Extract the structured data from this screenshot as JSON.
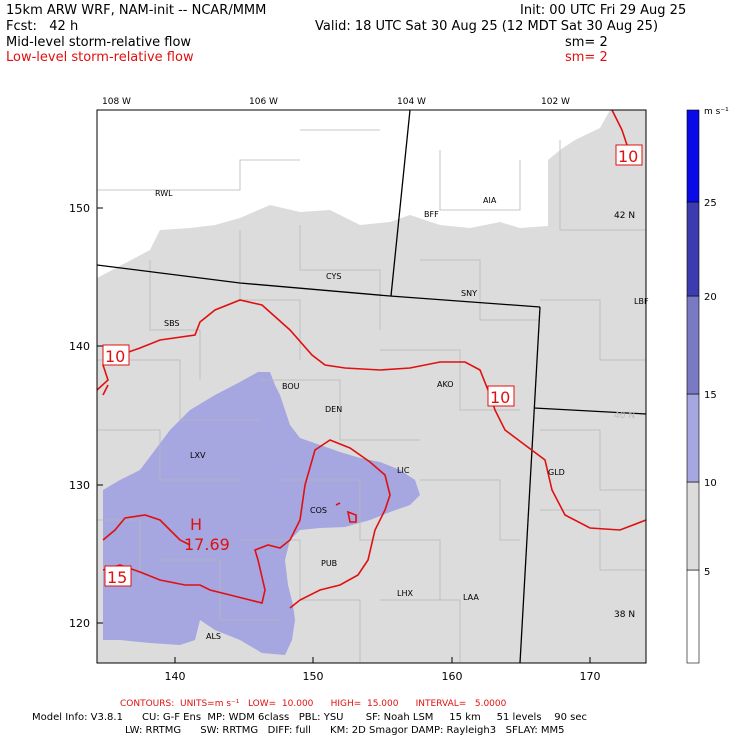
{
  "header": {
    "model_line": "15km ARW WRF, NAM-init -- NCAR/MMM",
    "init": "Init: 00 UTC Fri 29 Aug 25",
    "fcst": "Fcst:   42 h",
    "valid": "Valid: 18 UTC Sat 30 Aug 25 (12 MDT Sat 30 Aug 25)",
    "mid_label": "Mid-level storm-relative flow",
    "mid_sm": "sm= 2",
    "low_label": "Low-level storm-relative flow",
    "low_sm": "sm= 2"
  },
  "map": {
    "lon_labels": [
      "108 W",
      "106 W",
      "104 W",
      "102 W"
    ],
    "lat_labels": [
      "42 N",
      "40 N",
      "38 N"
    ],
    "x_ticks": [
      "140",
      "150",
      "160",
      "170"
    ],
    "y_ticks": [
      "150",
      "140",
      "130",
      "120"
    ],
    "stations": [
      "RWL",
      "BFF",
      "AIA",
      "CYS",
      "SNY",
      "LBF",
      "SBS",
      "BOU",
      "AKO",
      "DEN",
      "LXV",
      "LIC",
      "GLD",
      "COS",
      "PUB",
      "LHX",
      "LAA",
      "ALS"
    ],
    "contour_labels": [
      "10",
      "10",
      "10",
      "15"
    ],
    "high_marker": "H",
    "high_value": "17.69",
    "colors": {
      "contour": "#e01010",
      "gray_fill": "#dcdcdc",
      "lavender_fill": "#a6a6e0"
    }
  },
  "colorbar": {
    "unit": "m s⁻¹",
    "levels": [
      "5",
      "10",
      "15",
      "20",
      "25"
    ],
    "colors": [
      "#ffffff",
      "#dcdcdc",
      "#a6a6e0",
      "#7a7ac4",
      "#3c3cb0",
      "#0a0ae8"
    ]
  },
  "footer": {
    "contours_line": "CONTOURS:  UNITS=m s⁻¹   LOW=  10.000      HIGH=  15.000      INTERVAL=   5.0000",
    "model_info_1": "Model Info: V3.8.1      CU: G-F Ens  MP: WDM 6class   PBL: YSU       SF: Noah LSM     15 km     51 levels    90 sec",
    "model_info_2": "LW: RRTMG      SW: RRTMG   DIFF: full      KM: 2D Smagor DAMP: Rayleigh3   SFLAY: MM5"
  }
}
